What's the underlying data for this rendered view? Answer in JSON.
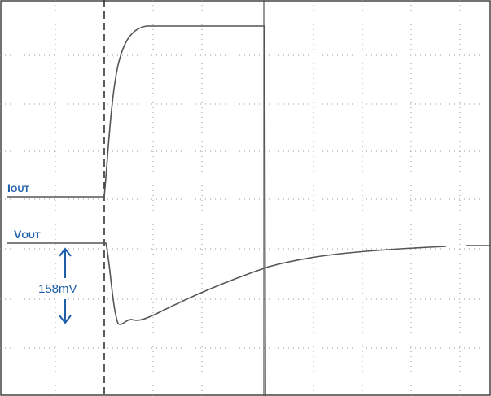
{
  "labels": {
    "iout": {
      "main": "I",
      "sub": "OUT"
    },
    "vout": {
      "main": "V",
      "sub": "OUT"
    },
    "delta": "158mV"
  }
}
